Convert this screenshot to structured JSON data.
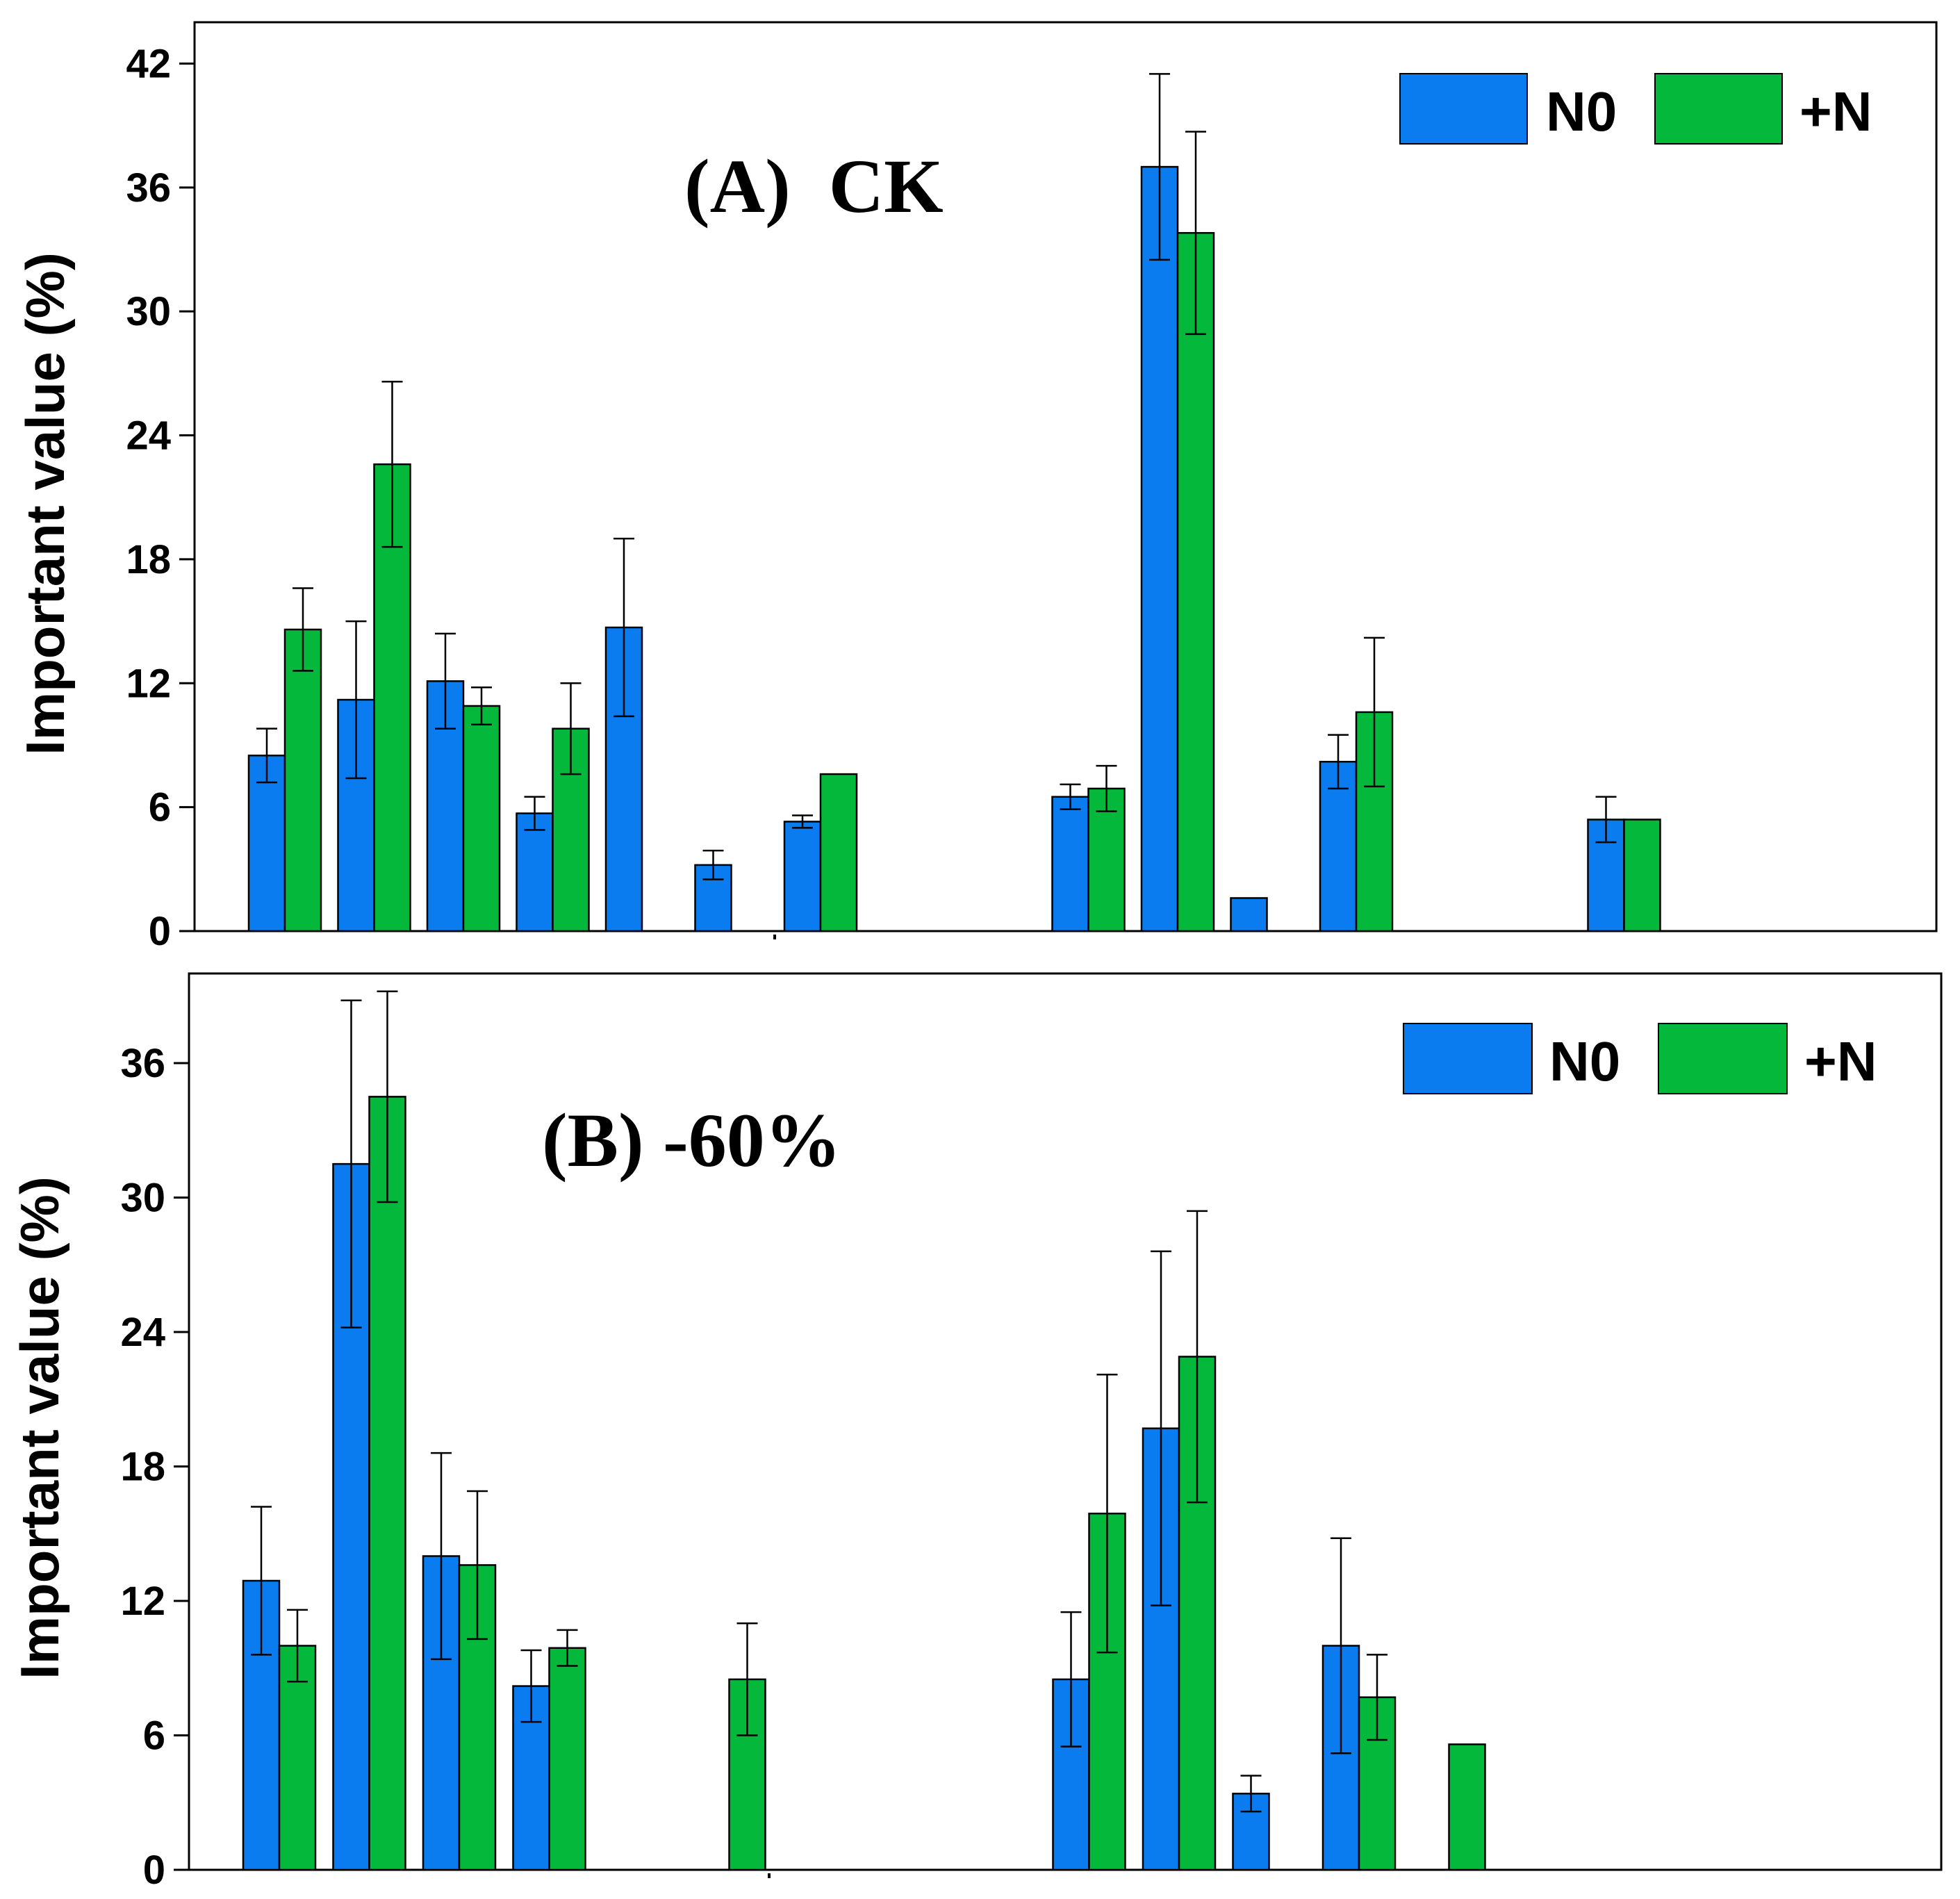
{
  "colors": {
    "n0": "#0a7cf0",
    "plus_n": "#04b83c",
    "axis": "#000000"
  },
  "legend": {
    "n0": "N0",
    "plus_n": "+N"
  },
  "chart_data": [
    {
      "type": "bar",
      "title": "(A)  CK",
      "ylabel": "Important value (%)",
      "xlabel": "",
      "ylim": [
        0,
        44
      ],
      "yticks": [
        0,
        6,
        12,
        18,
        24,
        30,
        36,
        42
      ],
      "n_groups": 19,
      "series": [
        {
          "name": "N0",
          "values": [
            8.5,
            11.2,
            12.1,
            5.7,
            14.7,
            3.2,
            5.3,
            null,
            null,
            6.5,
            37.0,
            1.6,
            8.2,
            null,
            null,
            5.4,
            null,
            null,
            null
          ],
          "errors": [
            1.3,
            3.8,
            2.3,
            0.8,
            4.3,
            0.7,
            0.3,
            null,
            null,
            0.6,
            4.5,
            null,
            1.3,
            null,
            null,
            1.1,
            null,
            null,
            null
          ]
        },
        {
          "name": "+N",
          "values": [
            14.6,
            22.6,
            10.9,
            9.8,
            null,
            null,
            7.6,
            null,
            null,
            6.9,
            33.8,
            null,
            10.6,
            null,
            null,
            5.4,
            null,
            null,
            null
          ],
          "errors": [
            2.0,
            4.0,
            0.9,
            2.2,
            null,
            null,
            null,
            null,
            null,
            1.1,
            4.9,
            null,
            3.6,
            null,
            null,
            null,
            null,
            null,
            null
          ]
        }
      ]
    },
    {
      "type": "bar",
      "title": "(B) -60%",
      "ylabel": "Important value (%)",
      "xlabel": "",
      "ylim": [
        0,
        40
      ],
      "yticks": [
        0,
        6,
        12,
        18,
        24,
        30,
        36
      ],
      "n_groups": 19,
      "series": [
        {
          "name": "N0",
          "values": [
            12.9,
            31.5,
            14.0,
            8.2,
            null,
            null,
            null,
            null,
            null,
            8.5,
            19.7,
            3.4,
            10.0,
            null,
            null,
            null,
            null,
            null,
            null
          ],
          "errors": [
            3.3,
            7.3,
            4.6,
            1.6,
            null,
            null,
            null,
            null,
            null,
            3.0,
            7.9,
            0.8,
            4.8,
            null,
            null,
            null,
            null,
            null,
            null
          ]
        },
        {
          "name": "+N",
          "values": [
            10.0,
            34.5,
            13.6,
            9.9,
            null,
            8.5,
            null,
            null,
            null,
            15.9,
            22.9,
            null,
            7.7,
            5.6,
            null,
            null,
            null,
            null,
            null
          ],
          "errors": [
            1.6,
            4.7,
            3.3,
            0.8,
            null,
            2.5,
            null,
            null,
            null,
            6.2,
            6.5,
            null,
            1.9,
            null,
            null,
            null,
            null,
            null,
            null
          ]
        }
      ]
    }
  ]
}
